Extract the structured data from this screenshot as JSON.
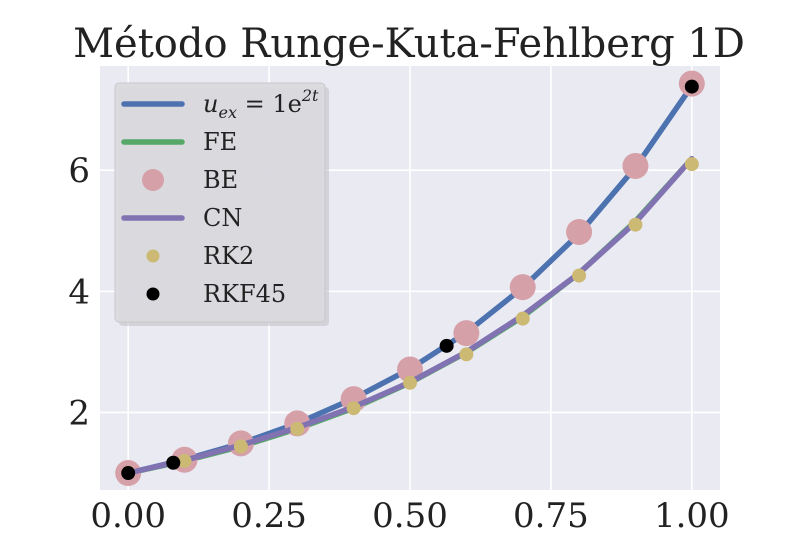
{
  "chart_data": {
    "type": "line",
    "title": "Método Runge-Kuta-Fehlberg 1D",
    "xlabel": "",
    "ylabel": "",
    "xlim": [
      -0.05,
      1.05
    ],
    "ylim": [
      0.72,
      7.72
    ],
    "xticks": [
      0.0,
      0.25,
      0.5,
      0.75,
      1.0
    ],
    "xtick_labels": [
      "0.00",
      "0.25",
      "0.50",
      "0.75",
      "1.00"
    ],
    "yticks": [
      2,
      4,
      6
    ],
    "ytick_labels": [
      "2",
      "4",
      "6"
    ],
    "grid": true,
    "legend_position": "top-left",
    "series": [
      {
        "name": "u_ex = 1e^{2t}",
        "legend_main": "u",
        "legend_sub": "ex",
        "legend_eq": " = 1e",
        "legend_sup": "2t",
        "kind": "line",
        "color": "#4c72b0",
        "x": [
          0.0,
          0.1,
          0.2,
          0.3,
          0.4,
          0.5,
          0.6,
          0.7,
          0.8,
          0.9,
          1.0
        ],
        "y": [
          1.0,
          1.22,
          1.49,
          1.82,
          2.23,
          2.72,
          3.32,
          4.06,
          4.95,
          6.05,
          7.39
        ]
      },
      {
        "name": "FE",
        "kind": "line",
        "color": "#55a868",
        "x": [
          0.0,
          0.1,
          0.2,
          0.3,
          0.4,
          0.5,
          0.6,
          0.7,
          0.8,
          0.9,
          1.0
        ],
        "y": [
          1.0,
          1.2,
          1.44,
          1.73,
          2.07,
          2.49,
          2.99,
          3.58,
          4.3,
          5.16,
          6.19
        ]
      },
      {
        "name": "BE",
        "kind": "marker",
        "marker_size": 13,
        "color": "#d6a0a8",
        "x": [
          0.0,
          0.1,
          0.2,
          0.3,
          0.4,
          0.5,
          0.6,
          0.7,
          0.8,
          0.9,
          1.0
        ],
        "y": [
          1.0,
          1.22,
          1.49,
          1.82,
          2.22,
          2.71,
          3.31,
          4.07,
          4.98,
          6.07,
          7.43
        ]
      },
      {
        "name": "CN",
        "kind": "line",
        "color": "#8172b2",
        "x": [
          0.0,
          0.1,
          0.2,
          0.3,
          0.4,
          0.5,
          0.6,
          0.7,
          0.8,
          0.9,
          1.0
        ],
        "y": [
          1.0,
          1.21,
          1.46,
          1.75,
          2.09,
          2.5,
          3.0,
          3.6,
          4.3,
          5.14,
          6.19
        ]
      },
      {
        "name": "RK2",
        "kind": "marker",
        "marker_size": 7,
        "color": "#ccb974",
        "x": [
          0.0,
          0.1,
          0.2,
          0.3,
          0.4,
          0.5,
          0.6,
          0.7,
          0.8,
          0.9,
          1.0
        ],
        "y": [
          1.0,
          1.2,
          1.44,
          1.73,
          2.07,
          2.49,
          2.96,
          3.55,
          4.26,
          5.1,
          6.1
        ]
      },
      {
        "name": "RKF45",
        "kind": "marker",
        "marker_size": 7,
        "color": "#000000",
        "x": [
          0.0,
          0.08,
          0.565,
          1.0
        ],
        "y": [
          1.0,
          1.17,
          3.1,
          7.38
        ]
      }
    ]
  }
}
